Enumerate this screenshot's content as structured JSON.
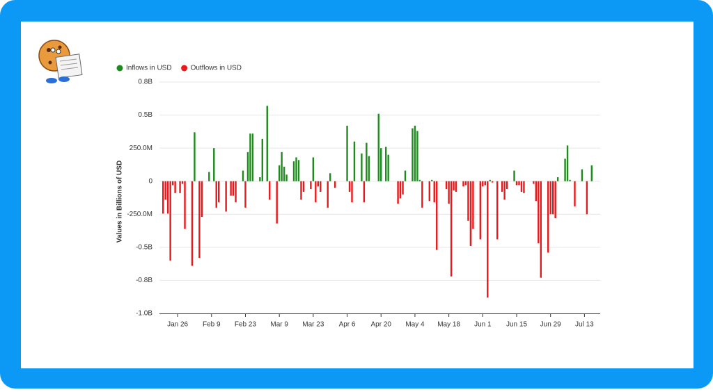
{
  "chart_data": {
    "type": "bar",
    "y_label": "Values in Billions of USD",
    "grid": true,
    "legend": "top-left",
    "ylim": [
      -1.0,
      0.75
    ],
    "yticks": [
      {
        "value": 0.75,
        "label": "0.8B"
      },
      {
        "value": 0.5,
        "label": "0.5B"
      },
      {
        "value": 0.25,
        "label": "250.0M"
      },
      0,
      {
        "value": -0.25,
        "label": "-250.0M"
      },
      {
        "value": -0.5,
        "label": "-0.5B"
      },
      {
        "value": -0.75,
        "label": "-0.8B"
      },
      {
        "value": -1.0,
        "label": "-1.0B"
      }
    ],
    "categories": [
      null,
      null,
      null,
      null,
      null,
      null,
      null,
      "Jan 26",
      null,
      null,
      null,
      null,
      null,
      null,
      null,
      null,
      null,
      null,
      null,
      null,
      null,
      "Feb 9",
      null,
      null,
      null,
      null,
      null,
      null,
      null,
      null,
      null,
      null,
      null,
      null,
      null,
      "Feb 23",
      null,
      null,
      null,
      null,
      null,
      null,
      null,
      null,
      null,
      null,
      null,
      null,
      null,
      "Mar 9",
      null,
      null,
      null,
      null,
      null,
      null,
      null,
      null,
      null,
      null,
      null,
      null,
      null,
      "Mar 23",
      null,
      null,
      null,
      null,
      null,
      null,
      null,
      null,
      null,
      null,
      null,
      null,
      null,
      "Apr 6",
      null,
      null,
      null,
      null,
      null,
      null,
      null,
      null,
      null,
      null,
      null,
      null,
      null,
      "Apr 20",
      null,
      null,
      null,
      null,
      null,
      null,
      null,
      null,
      null,
      null,
      null,
      null,
      null,
      "May 4",
      null,
      null,
      null,
      null,
      null,
      null,
      null,
      null,
      null,
      null,
      null,
      null,
      null,
      "May 18",
      null,
      null,
      null,
      null,
      null,
      null,
      null,
      null,
      null,
      null,
      null,
      null,
      null,
      "Jun 1",
      null,
      null,
      null,
      null,
      null,
      null,
      null,
      null,
      null,
      null,
      null,
      null,
      null,
      "Jun 15",
      null,
      null,
      null,
      null,
      null,
      null,
      null,
      null,
      null,
      null,
      null,
      null,
      null,
      "Jun 29",
      null,
      null,
      null,
      null,
      null,
      null,
      null,
      null,
      null,
      null,
      null,
      null,
      null,
      "Jul 13",
      null,
      null,
      null,
      null,
      null,
      null
    ],
    "series": [
      {
        "name": "Inflows in USD",
        "color": "#1f8b1f",
        "values": [
          null,
          null,
          null,
          null,
          null,
          null,
          null,
          null,
          null,
          null,
          null,
          null,
          null,
          null,
          0.37,
          null,
          null,
          null,
          null,
          null,
          0.07,
          null,
          0.25,
          null,
          null,
          null,
          null,
          null,
          null,
          null,
          null,
          null,
          null,
          null,
          0.08,
          null,
          0.22,
          0.36,
          0.36,
          null,
          null,
          0.03,
          0.32,
          null,
          0.57,
          null,
          null,
          null,
          null,
          0.12,
          0.22,
          0.11,
          0.05,
          null,
          null,
          0.15,
          0.18,
          0.16,
          null,
          null,
          null,
          null,
          null,
          0.18,
          null,
          null,
          null,
          null,
          null,
          null,
          0.06,
          null,
          null,
          null,
          null,
          null,
          null,
          0.42,
          null,
          null,
          0.3,
          null,
          null,
          0.21,
          null,
          0.29,
          0.19,
          null,
          null,
          null,
          0.51,
          0.25,
          null,
          0.26,
          0.2,
          null,
          null,
          null,
          null,
          null,
          null,
          0.08,
          null,
          null,
          0.4,
          0.42,
          0.38,
          0.01,
          null,
          null,
          null,
          null,
          0.01,
          null,
          null,
          null,
          null,
          null,
          null,
          null,
          null,
          null,
          null,
          null,
          null,
          null,
          null,
          null,
          null,
          null,
          null,
          null,
          null,
          null,
          null,
          null,
          0.01,
          null,
          null,
          null,
          null,
          null,
          null,
          null,
          null,
          null,
          0.08,
          null,
          null,
          null,
          null,
          null,
          null,
          null,
          null,
          null,
          null,
          null,
          null,
          null,
          null,
          null,
          null,
          null,
          0.03,
          null,
          null,
          0.17,
          0.27,
          0.01,
          null,
          null,
          null,
          null,
          0.09,
          null,
          null,
          null,
          0.12,
          null,
          null,
          null
        ]
      },
      {
        "name": "Outflows in USD",
        "color": "#e8191c",
        "values": [
          null,
          -0.245,
          -0.14,
          -0.245,
          -0.6,
          -0.03,
          -0.09,
          null,
          -0.09,
          -0.02,
          -0.36,
          null,
          null,
          -0.64,
          null,
          null,
          -0.58,
          -0.27,
          null,
          null,
          null,
          null,
          null,
          -0.2,
          -0.16,
          null,
          null,
          -0.23,
          null,
          -0.11,
          -0.11,
          -0.16,
          null,
          null,
          null,
          -0.2,
          null,
          null,
          null,
          null,
          null,
          null,
          null,
          null,
          null,
          -0.14,
          null,
          null,
          -0.32,
          null,
          null,
          null,
          null,
          null,
          null,
          null,
          null,
          null,
          -0.14,
          -0.08,
          null,
          null,
          -0.06,
          null,
          -0.16,
          -0.04,
          -0.08,
          null,
          null,
          -0.2,
          null,
          null,
          -0.05,
          null,
          null,
          null,
          null,
          null,
          -0.08,
          -0.16,
          null,
          null,
          null,
          null,
          -0.16,
          null,
          null,
          null,
          null,
          null,
          null,
          null,
          null,
          null,
          null,
          null,
          null,
          null,
          -0.17,
          -0.13,
          -0.1,
          null,
          null,
          null,
          null,
          null,
          null,
          null,
          -0.2,
          null,
          null,
          -0.15,
          null,
          -0.16,
          -0.52,
          null,
          null,
          null,
          -0.06,
          -0.17,
          -0.72,
          -0.07,
          -0.08,
          null,
          null,
          -0.04,
          -0.03,
          -0.3,
          -0.49,
          -0.36,
          null,
          null,
          -0.44,
          -0.04,
          -0.03,
          -0.88,
          null,
          -0.01,
          null,
          -0.44,
          null,
          -0.08,
          -0.14,
          -0.06,
          null,
          null,
          null,
          -0.03,
          -0.03,
          -0.08,
          -0.09,
          null,
          null,
          null,
          -0.02,
          -0.15,
          -0.47,
          -0.73,
          null,
          null,
          -0.54,
          -0.25,
          -0.25,
          -0.28,
          null,
          null,
          null,
          null,
          null,
          null,
          null,
          -0.19,
          null,
          null,
          null,
          null,
          -0.25,
          null,
          null,
          null,
          null,
          null
        ]
      }
    ]
  }
}
